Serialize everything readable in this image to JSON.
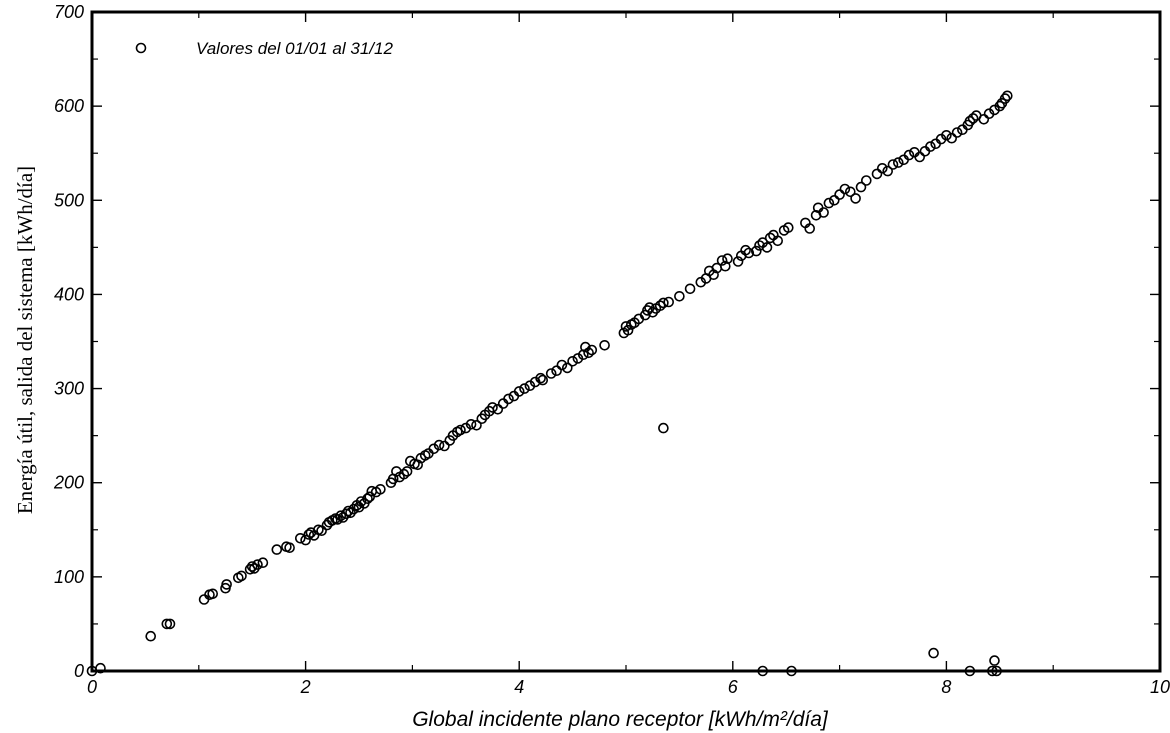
{
  "chart_data": {
    "type": "scatter",
    "title": "",
    "xlabel": "Global incidente plano receptor [kWh/m²/día]",
    "ylabel": "Energía útil, salida del sistema [kWh/día]",
    "xlim": [
      0,
      10
    ],
    "ylim": [
      0,
      700
    ],
    "x_ticks": [
      0,
      2,
      4,
      6,
      8,
      10
    ],
    "y_ticks": [
      0,
      100,
      200,
      300,
      400,
      500,
      600,
      700
    ],
    "x_tick_labels": [
      "0",
      "2",
      "4",
      "6",
      "8",
      "10"
    ],
    "y_tick_labels": [
      "0",
      "100",
      "200",
      "300",
      "400",
      "500",
      "600",
      "700"
    ],
    "grid": false,
    "legend_position": "top-left",
    "marker": "open-circle",
    "series": [
      {
        "name": "Valores del 01/01 al 31/12",
        "points": [
          [
            0.0,
            0
          ],
          [
            0.08,
            3
          ],
          [
            0.55,
            37
          ],
          [
            0.7,
            50
          ],
          [
            0.73,
            50
          ],
          [
            1.05,
            76
          ],
          [
            1.1,
            81
          ],
          [
            1.13,
            82
          ],
          [
            1.25,
            88
          ],
          [
            1.26,
            92
          ],
          [
            1.37,
            99
          ],
          [
            1.4,
            101
          ],
          [
            1.48,
            108
          ],
          [
            1.5,
            111
          ],
          [
            1.52,
            109
          ],
          [
            1.55,
            113
          ],
          [
            1.6,
            115
          ],
          [
            1.73,
            129
          ],
          [
            1.82,
            132
          ],
          [
            1.85,
            131
          ],
          [
            1.95,
            141
          ],
          [
            2.0,
            139
          ],
          [
            2.03,
            145
          ],
          [
            2.05,
            147
          ],
          [
            2.08,
            144
          ],
          [
            2.12,
            150
          ],
          [
            2.15,
            149
          ],
          [
            2.2,
            155
          ],
          [
            2.22,
            158
          ],
          [
            2.25,
            160
          ],
          [
            2.28,
            162
          ],
          [
            2.3,
            161
          ],
          [
            2.33,
            165
          ],
          [
            2.35,
            163
          ],
          [
            2.38,
            167
          ],
          [
            2.4,
            170
          ],
          [
            2.42,
            168
          ],
          [
            2.45,
            172
          ],
          [
            2.48,
            176
          ],
          [
            2.5,
            174
          ],
          [
            2.52,
            180
          ],
          [
            2.55,
            178
          ],
          [
            2.58,
            183
          ],
          [
            2.6,
            185
          ],
          [
            2.62,
            191
          ],
          [
            2.66,
            190
          ],
          [
            2.7,
            193
          ],
          [
            2.8,
            200
          ],
          [
            2.82,
            204
          ],
          [
            2.85,
            212
          ],
          [
            2.88,
            206
          ],
          [
            2.92,
            209
          ],
          [
            2.95,
            212
          ],
          [
            2.98,
            223
          ],
          [
            3.02,
            220
          ],
          [
            3.05,
            219
          ],
          [
            3.08,
            226
          ],
          [
            3.12,
            229
          ],
          [
            3.15,
            231
          ],
          [
            3.2,
            236
          ],
          [
            3.25,
            240
          ],
          [
            3.3,
            239
          ],
          [
            3.35,
            245
          ],
          [
            3.38,
            250
          ],
          [
            3.42,
            254
          ],
          [
            3.45,
            256
          ],
          [
            3.5,
            258
          ],
          [
            3.55,
            262
          ],
          [
            3.6,
            261
          ],
          [
            3.65,
            268
          ],
          [
            3.68,
            272
          ],
          [
            3.72,
            276
          ],
          [
            3.75,
            280
          ],
          [
            3.8,
            278
          ],
          [
            3.85,
            284
          ],
          [
            3.9,
            289
          ],
          [
            3.95,
            292
          ],
          [
            4.0,
            297
          ],
          [
            4.05,
            300
          ],
          [
            4.1,
            303
          ],
          [
            4.15,
            307
          ],
          [
            4.2,
            311
          ],
          [
            4.22,
            309
          ],
          [
            4.3,
            316
          ],
          [
            4.35,
            319
          ],
          [
            4.4,
            325
          ],
          [
            4.45,
            322
          ],
          [
            4.5,
            329
          ],
          [
            4.55,
            332
          ],
          [
            4.6,
            336
          ],
          [
            4.62,
            344
          ],
          [
            4.65,
            338
          ],
          [
            4.68,
            341
          ],
          [
            4.8,
            346
          ],
          [
            4.98,
            359
          ],
          [
            5.0,
            366
          ],
          [
            5.02,
            362
          ],
          [
            5.05,
            368
          ],
          [
            5.08,
            370
          ],
          [
            5.12,
            374
          ],
          [
            5.18,
            378
          ],
          [
            5.2,
            383
          ],
          [
            5.22,
            386
          ],
          [
            5.25,
            381
          ],
          [
            5.28,
            385
          ],
          [
            5.32,
            388
          ],
          [
            5.35,
            391
          ],
          [
            5.4,
            392
          ],
          [
            5.5,
            398
          ],
          [
            5.6,
            406
          ],
          [
            5.7,
            413
          ],
          [
            5.75,
            417
          ],
          [
            5.78,
            425
          ],
          [
            5.82,
            421
          ],
          [
            5.85,
            428
          ],
          [
            5.9,
            436
          ],
          [
            5.93,
            430
          ],
          [
            5.95,
            438
          ],
          [
            6.05,
            435
          ],
          [
            6.08,
            441
          ],
          [
            6.12,
            447
          ],
          [
            6.15,
            444
          ],
          [
            6.22,
            446
          ],
          [
            6.25,
            452
          ],
          [
            6.28,
            455
          ],
          [
            6.32,
            450
          ],
          [
            6.35,
            460
          ],
          [
            6.38,
            463
          ],
          [
            6.42,
            457
          ],
          [
            6.48,
            468
          ],
          [
            6.52,
            471
          ],
          [
            6.68,
            476
          ],
          [
            6.72,
            470
          ],
          [
            6.78,
            484
          ],
          [
            6.8,
            492
          ],
          [
            6.85,
            487
          ],
          [
            6.9,
            497
          ],
          [
            6.95,
            500
          ],
          [
            7.0,
            506
          ],
          [
            7.05,
            512
          ],
          [
            7.1,
            509
          ],
          [
            7.15,
            502
          ],
          [
            7.2,
            514
          ],
          [
            7.25,
            521
          ],
          [
            7.35,
            528
          ],
          [
            7.4,
            534
          ],
          [
            7.45,
            531
          ],
          [
            7.5,
            538
          ],
          [
            7.55,
            540
          ],
          [
            7.6,
            543
          ],
          [
            7.65,
            548
          ],
          [
            7.7,
            551
          ],
          [
            7.75,
            546
          ],
          [
            7.8,
            552
          ],
          [
            7.85,
            557
          ],
          [
            7.9,
            560
          ],
          [
            7.95,
            565
          ],
          [
            8.0,
            569
          ],
          [
            8.05,
            566
          ],
          [
            8.1,
            572
          ],
          [
            8.15,
            575
          ],
          [
            8.2,
            580
          ],
          [
            8.22,
            584
          ],
          [
            8.25,
            587
          ],
          [
            8.28,
            590
          ],
          [
            8.35,
            586
          ],
          [
            8.4,
            592
          ],
          [
            8.45,
            596
          ],
          [
            8.5,
            600
          ],
          [
            8.52,
            603
          ],
          [
            8.55,
            608
          ],
          [
            8.57,
            611
          ],
          [
            5.35,
            258
          ],
          [
            6.28,
            0
          ],
          [
            6.55,
            0
          ],
          [
            7.88,
            19
          ],
          [
            8.22,
            0
          ],
          [
            8.43,
            0
          ],
          [
            8.45,
            11
          ],
          [
            8.47,
            0
          ]
        ]
      }
    ]
  }
}
